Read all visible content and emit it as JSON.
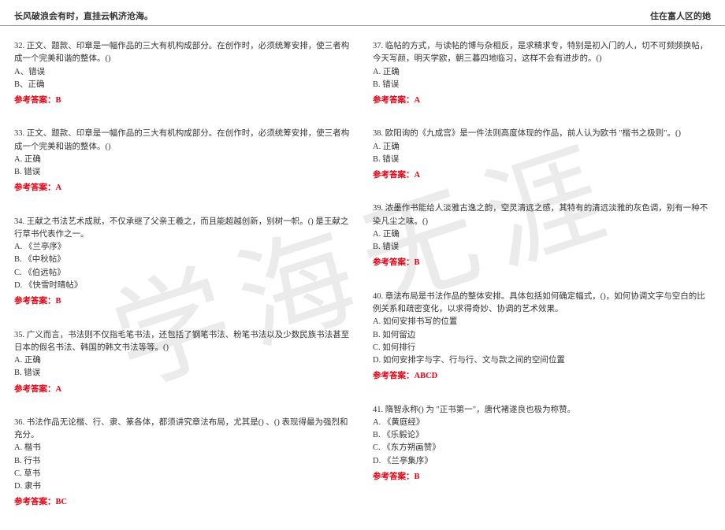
{
  "header": {
    "left": "长风破浪会有时，直挂云帆济沧海。",
    "right": "住在富人区的她"
  },
  "watermark": "学海无涯",
  "columns": {
    "left": [
      {
        "stem": "32. 正文、题款、印章是一幅作品的三大有机构成部分。在创作时，必须统筹安排，使三者构成一个完美和谐的整体。()",
        "options": [
          "A、错误",
          "B、正确"
        ],
        "answerLabel": "参考答案：",
        "answer": "B"
      },
      {
        "stem": "33. 正文、题款、印章是一幅作品的三大有机构成部分。在创作时，必须统筹安排，使三者构成一个完美和谐的整体。()",
        "options": [
          "A. 正确",
          "B. 错误"
        ],
        "answerLabel": "参考答案：",
        "answer": "A"
      },
      {
        "stem": "34. 王献之书法艺术成就，不仅承继了父亲王羲之，而且能超越创新，别树一帜。() 是王献之行草书代表作之一。",
        "options": [
          "A. 《兰亭序》",
          "B. 《中秋帖》",
          "C. 《伯远帖》",
          "D. 《快雪时晴帖》"
        ],
        "answerLabel": "参考答案：",
        "answer": "B"
      },
      {
        "stem": "35. 广义而言，书法则不仅指毛笔书法，还包括了钢笔书法、粉笔书法以及少数民族书法甚至日本的假名书法、韩国的韩文书法等等。()",
        "options": [
          "A. 正确",
          "B. 错误"
        ],
        "answerLabel": "参考答案：",
        "answer": "A"
      },
      {
        "stem": "36. 书法作品无论楷、行、隶、篆各体，都须讲究章法布局，尤其是() 、() 表现得最为强烈和充分。",
        "options": [
          "A. 楷书",
          "B. 行书",
          "C. 草书",
          "D. 隶书"
        ],
        "answerLabel": "参考答案：",
        "answer": "BC"
      }
    ],
    "right": [
      {
        "stem": "37. 临帖的方式，与读帖的博与杂相反，是求精求专，特别是初入门的人，切不可频频换帖，今天写颜，明天学欧，朝三暮四地临习，这样不会有进步的。()",
        "options": [
          "A. 正确",
          "B. 错误"
        ],
        "answerLabel": "参考答案：",
        "answer": "A"
      },
      {
        "stem": "38. 欧阳询的《九成宫》是一件法则高度体现的作品，前人认为欧书 \"楷书之极则\"。()",
        "options": [
          "A. 正确",
          "B. 错误"
        ],
        "answerLabel": "参考答案：",
        "answer": "A"
      },
      {
        "stem": "39. 浓墨作书能给人淡雅古逸之韵，空灵清远之感，其特有的清远淡雅的灰色调，别有一种不染凡尘之味。()",
        "options": [
          "A. 正确",
          "B. 错误"
        ],
        "answerLabel": "参考答案：",
        "answer": "B"
      },
      {
        "stem": "40. 章法布局是书法作品的整体安排。具体包括如何确定幅式，()，如何协调文字与空白的比例关系和疏密变化，以求得奇妙、协调的艺术效果。",
        "options": [
          "A. 如何安排书写的位置",
          "B. 如何留边",
          "C. 如何排行",
          "D. 如何安排字与字、行与行、文与款之间的空间位置"
        ],
        "answerLabel": "参考答案：",
        "answer": "ABCD"
      },
      {
        "stem": "41. 隋智永称() 为 \"正书第一\"，唐代褚遂良也极为称赞。",
        "options": [
          "A. 《黄庭经》",
          "B. 《乐毅论》",
          "C. 《东方朔画赞》",
          "D. 《兰亭集序》"
        ],
        "answerLabel": "参考答案：",
        "answer": "B"
      }
    ]
  }
}
